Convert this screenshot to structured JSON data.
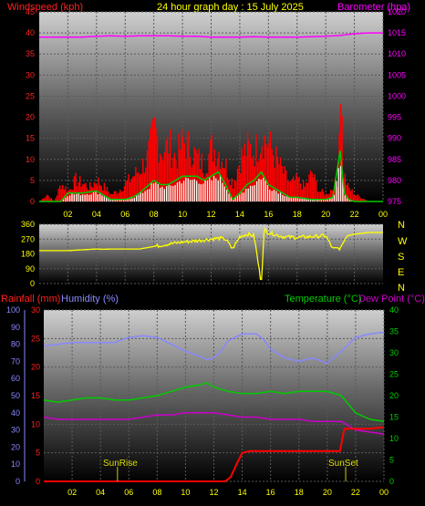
{
  "header": {
    "windspeed_label": "Windspeed (kph)",
    "title": "24 hour graph day : 15 July 2025",
    "barometer_label": "Barometer (hpa)"
  },
  "middle": {
    "direction_letters": [
      "N",
      "W",
      "S",
      "E",
      "N"
    ]
  },
  "lower_header": {
    "rainfall_label": "Rainfall (mm)",
    "humidity_label": "Humidity (%)",
    "temperature_label": "Temperature (°C)",
    "dewpoint_label": "Dew Point (°C)"
  },
  "annotations": {
    "sunrise": "SunRise",
    "sunset": "SunSet"
  },
  "colors": {
    "wind": "#ff0000",
    "gust": "#ff0000",
    "avg_wind": "#00cc00",
    "barometer": "#ff00ff",
    "direction": "#ffff00",
    "rainfall": "#ff0000",
    "humidity": "#8888ff",
    "temperature": "#00cc00",
    "dewpoint": "#cc00cc",
    "sun_marker": "#cccc00"
  },
  "chart_data": [
    {
      "type": "bar",
      "name": "wind",
      "x_ticks": [
        "02",
        "04",
        "06",
        "08",
        "10",
        "12",
        "14",
        "16",
        "18",
        "20",
        "22",
        "00"
      ],
      "x_tick_hours": [
        2,
        4,
        6,
        8,
        10,
        12,
        14,
        16,
        18,
        20,
        22,
        24
      ],
      "x_range_hours": [
        0,
        24
      ],
      "ylim_wind": [
        0,
        45
      ],
      "y_ticks_wind": [
        0,
        5,
        10,
        15,
        20,
        25,
        30,
        35,
        40,
        45
      ],
      "ylim_baro": [
        975,
        1020
      ],
      "y_ticks_baro": [
        975,
        980,
        985,
        990,
        995,
        1000,
        1005,
        1010,
        1015,
        1020
      ],
      "legend": "none",
      "grid": true,
      "gust_profile": [
        [
          0,
          0
        ],
        [
          0.5,
          2
        ],
        [
          1,
          0
        ],
        [
          1.5,
          5
        ],
        [
          2,
          3
        ],
        [
          2.5,
          6
        ],
        [
          3,
          5
        ],
        [
          3.5,
          4
        ],
        [
          4,
          6
        ],
        [
          4.5,
          4
        ],
        [
          5,
          2
        ],
        [
          5.5,
          3
        ],
        [
          6,
          5
        ],
        [
          6.5,
          7
        ],
        [
          7,
          9
        ],
        [
          7.5,
          12
        ],
        [
          8,
          20
        ],
        [
          8.5,
          14
        ],
        [
          9,
          16
        ],
        [
          9.5,
          12
        ],
        [
          10,
          17
        ],
        [
          10.5,
          15
        ],
        [
          11,
          12
        ],
        [
          11.5,
          10
        ],
        [
          12,
          15
        ],
        [
          12.5,
          14
        ],
        [
          13,
          10
        ],
        [
          13.5,
          5
        ],
        [
          14,
          12
        ],
        [
          14.5,
          15
        ],
        [
          15,
          14
        ],
        [
          15.5,
          18
        ],
        [
          16,
          16
        ],
        [
          16.5,
          12
        ],
        [
          17,
          8
        ],
        [
          17.5,
          5
        ],
        [
          18,
          6
        ],
        [
          18.5,
          4
        ],
        [
          19,
          8
        ],
        [
          19.5,
          3
        ],
        [
          20,
          2
        ],
        [
          20.5,
          4
        ],
        [
          20.8,
          6
        ],
        [
          21,
          35
        ],
        [
          21.2,
          8
        ],
        [
          21.5,
          4
        ],
        [
          22,
          2
        ],
        [
          22.5,
          1
        ],
        [
          23,
          0
        ],
        [
          23.5,
          0
        ],
        [
          24,
          0
        ]
      ],
      "avg_wind": [
        [
          0,
          0
        ],
        [
          1,
          0
        ],
        [
          1.5,
          0
        ],
        [
          2,
          2
        ],
        [
          3,
          2
        ],
        [
          4,
          2.5
        ],
        [
          4.5,
          1.5
        ],
        [
          5,
          0.5
        ],
        [
          6,
          0.5
        ],
        [
          6.5,
          1
        ],
        [
          7,
          2
        ],
        [
          8,
          5
        ],
        [
          8.5,
          4
        ],
        [
          9,
          4
        ],
        [
          10,
          6
        ],
        [
          11,
          6
        ],
        [
          11.5,
          5
        ],
        [
          12,
          6
        ],
        [
          12.5,
          7
        ],
        [
          13,
          4
        ],
        [
          13.5,
          0.5
        ],
        [
          14,
          2
        ],
        [
          14.5,
          4
        ],
        [
          15,
          5
        ],
        [
          15.5,
          7
        ],
        [
          16,
          4
        ],
        [
          16.5,
          3
        ],
        [
          17,
          2
        ],
        [
          17.5,
          1
        ],
        [
          18,
          1
        ],
        [
          19,
          0.5
        ],
        [
          20,
          0.5
        ],
        [
          20.5,
          1
        ],
        [
          21,
          12
        ],
        [
          21.3,
          2
        ],
        [
          21.6,
          0.5
        ],
        [
          22,
          0
        ],
        [
          24,
          0
        ]
      ],
      "barometer": [
        [
          0,
          1014
        ],
        [
          1,
          1014
        ],
        [
          2,
          1014
        ],
        [
          3,
          1014
        ],
        [
          4,
          1014.2
        ],
        [
          5,
          1014.3
        ],
        [
          6,
          1014.2
        ],
        [
          7,
          1014.3
        ],
        [
          8,
          1014.3
        ],
        [
          9,
          1014.3
        ],
        [
          10,
          1014.2
        ],
        [
          11,
          1014.2
        ],
        [
          12,
          1014
        ],
        [
          13,
          1014
        ],
        [
          14,
          1014
        ],
        [
          15,
          1014.1
        ],
        [
          16,
          1014
        ],
        [
          17,
          1014
        ],
        [
          18,
          1014
        ],
        [
          19,
          1014.1
        ],
        [
          20,
          1014.2
        ],
        [
          21,
          1014.4
        ],
        [
          22,
          1014.8
        ],
        [
          23,
          1015
        ],
        [
          24,
          1015
        ]
      ]
    },
    {
      "type": "line",
      "name": "wind_direction",
      "y_ticks": [
        0,
        90,
        180,
        270,
        360
      ],
      "ylim": [
        0,
        360
      ],
      "x_range_hours": [
        0,
        24
      ],
      "grid": true,
      "legend": "none",
      "direction": [
        [
          0,
          200
        ],
        [
          1,
          200
        ],
        [
          2,
          200
        ],
        [
          3,
          205
        ],
        [
          4,
          210
        ],
        [
          4.5,
          208
        ],
        [
          5,
          210
        ],
        [
          6,
          210
        ],
        [
          7,
          210
        ],
        [
          8,
          225
        ],
        [
          9,
          240
        ],
        [
          10,
          252
        ],
        [
          11,
          260
        ],
        [
          12,
          270
        ],
        [
          12.5,
          275
        ],
        [
          13,
          270
        ],
        [
          13.5,
          210
        ],
        [
          14,
          285
        ],
        [
          14.5,
          300
        ],
        [
          15,
          290
        ],
        [
          15.5,
          0
        ],
        [
          15.7,
          330
        ],
        [
          16,
          310
        ],
        [
          17,
          285
        ],
        [
          18,
          280
        ],
        [
          19,
          285
        ],
        [
          20,
          290
        ],
        [
          20.5,
          210
        ],
        [
          21,
          215
        ],
        [
          21.5,
          290
        ],
        [
          22,
          300
        ],
        [
          23,
          310
        ],
        [
          24,
          310
        ]
      ]
    },
    {
      "type": "line",
      "name": "climate",
      "x_ticks": [
        "02",
        "04",
        "06",
        "08",
        "10",
        "12",
        "14",
        "16",
        "18",
        "20",
        "22",
        "00"
      ],
      "x_tick_hours": [
        2,
        4,
        6,
        8,
        10,
        12,
        14,
        16,
        18,
        20,
        22,
        24
      ],
      "x_range_hours": [
        0,
        24
      ],
      "ylim_humidity": [
        0,
        100
      ],
      "y_ticks_humidity": [
        0,
        10,
        20,
        30,
        40,
        50,
        60,
        70,
        80,
        90,
        100
      ],
      "ylim_rain": [
        0,
        30
      ],
      "y_ticks_rain": [
        0,
        5,
        10,
        15,
        20,
        25,
        30
      ],
      "ylim_temp": [
        0,
        40
      ],
      "y_ticks_temp": [
        0,
        5,
        10,
        15,
        20,
        25,
        30,
        35,
        40
      ],
      "grid": true,
      "legend": "none",
      "humidity": [
        [
          0,
          79
        ],
        [
          1,
          80
        ],
        [
          2,
          81
        ],
        [
          3,
          81
        ],
        [
          4,
          81
        ],
        [
          5,
          81
        ],
        [
          6,
          84
        ],
        [
          7,
          85
        ],
        [
          8,
          84
        ],
        [
          9,
          80
        ],
        [
          10,
          76
        ],
        [
          11,
          73
        ],
        [
          11.5,
          71
        ],
        [
          12,
          72
        ],
        [
          12.5,
          76
        ],
        [
          13,
          82
        ],
        [
          14,
          86
        ],
        [
          15,
          86
        ],
        [
          15.5,
          83
        ],
        [
          16,
          77
        ],
        [
          17,
          72
        ],
        [
          18,
          70
        ],
        [
          19,
          72
        ],
        [
          20,
          69
        ],
        [
          21,
          76
        ],
        [
          22,
          84
        ],
        [
          23,
          86
        ],
        [
          24,
          87
        ]
      ],
      "temperature": [
        [
          0,
          19
        ],
        [
          1,
          18.5
        ],
        [
          2,
          19
        ],
        [
          3,
          19.5
        ],
        [
          4,
          19.5
        ],
        [
          5,
          19
        ],
        [
          6,
          19
        ],
        [
          7,
          19.5
        ],
        [
          8,
          20
        ],
        [
          9,
          21
        ],
        [
          10,
          22
        ],
        [
          11,
          22.5
        ],
        [
          11.5,
          23
        ],
        [
          12,
          22
        ],
        [
          13,
          21
        ],
        [
          14,
          20.5
        ],
        [
          15,
          20.5
        ],
        [
          16,
          21
        ],
        [
          17,
          20.5
        ],
        [
          18,
          21
        ],
        [
          19,
          21
        ],
        [
          20,
          21
        ],
        [
          21,
          20
        ],
        [
          21.5,
          18
        ],
        [
          22,
          16
        ],
        [
          23,
          14.5
        ],
        [
          24,
          14
        ]
      ],
      "dewpoint": [
        [
          0,
          15
        ],
        [
          1,
          14.5
        ],
        [
          2,
          14.5
        ],
        [
          3,
          14.5
        ],
        [
          4,
          14.5
        ],
        [
          5,
          14.5
        ],
        [
          6,
          14.5
        ],
        [
          7,
          15
        ],
        [
          8,
          15.5
        ],
        [
          9,
          15.5
        ],
        [
          10,
          16
        ],
        [
          11,
          16
        ],
        [
          12,
          16
        ],
        [
          13,
          15.5
        ],
        [
          14,
          15
        ],
        [
          15,
          15
        ],
        [
          16,
          14.5
        ],
        [
          17,
          14.5
        ],
        [
          18,
          14.5
        ],
        [
          19,
          14
        ],
        [
          20,
          14
        ],
        [
          21,
          14
        ],
        [
          21.5,
          13
        ],
        [
          22,
          12
        ],
        [
          23,
          11.5
        ],
        [
          24,
          11
        ]
      ],
      "rainfall": [
        [
          0,
          0
        ],
        [
          12,
          0
        ],
        [
          12.8,
          0
        ],
        [
          13.2,
          0.8
        ],
        [
          13.6,
          3
        ],
        [
          14,
          5
        ],
        [
          14.5,
          5.3
        ],
        [
          20.9,
          5.3
        ],
        [
          21.2,
          9.2
        ],
        [
          23,
          9.2
        ],
        [
          24,
          9.5
        ]
      ],
      "sunrise_hour": 5.2,
      "sunset_hour": 21.3
    }
  ]
}
